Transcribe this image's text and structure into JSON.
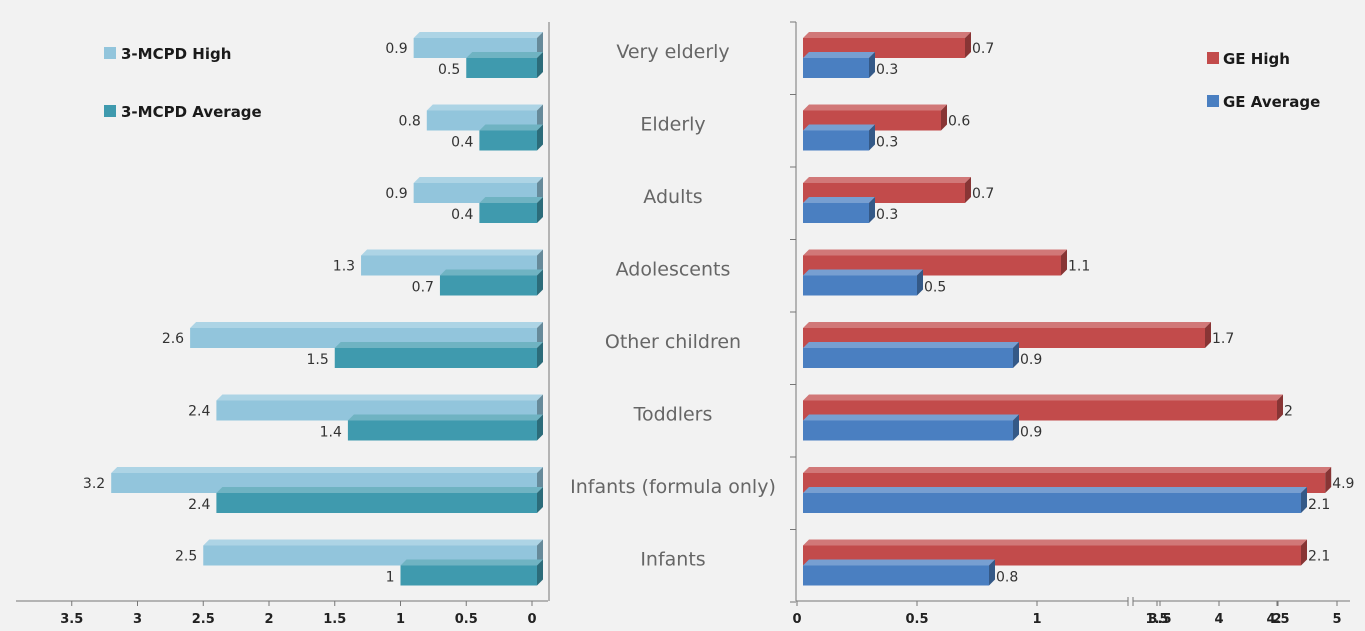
{
  "chart_data": {
    "type": "bar",
    "categories": [
      "Very elderly",
      "Elderly",
      "Adults",
      "Adolescents",
      "Other children",
      "Toddlers",
      "Infants (formula only)",
      "Infants"
    ],
    "left_panel": {
      "orientation": "horizontal-reversed",
      "xlim": [
        0,
        3.5
      ],
      "ticks": [
        "3.5",
        "3",
        "2.5",
        "2",
        "1.5",
        "1",
        "0.5",
        "0"
      ],
      "series": [
        {
          "name": "3-MCPD High",
          "color": "#92c5dc",
          "labels": [
            "0.9",
            "0.8",
            "0.9",
            "1.3",
            "2.6",
            "2.4",
            "3.2",
            "2.5"
          ],
          "values": [
            0.9,
            0.8,
            0.9,
            1.3,
            2.6,
            2.4,
            3.2,
            2.5
          ]
        },
        {
          "name": "3-MCPD Average",
          "color": "#3f9aae",
          "labels": [
            "0.5",
            "0.4",
            "0.4",
            "0.7",
            "1.5",
            "1.4",
            "2.4",
            "1"
          ],
          "values": [
            0.5,
            0.4,
            0.4,
            0.7,
            1.5,
            1.4,
            2.4,
            1.0
          ]
        }
      ],
      "legend_position": "top-left"
    },
    "right_panel": {
      "orientation": "horizontal",
      "axis_break": true,
      "ticks_lower": [
        "0",
        "0.5",
        "1",
        "1.5",
        "2",
        "2.5"
      ],
      "ticks_upper": [
        "3.5",
        "4",
        "4.5",
        "5"
      ],
      "series": [
        {
          "name": "GE High",
          "color": "#c24b4b",
          "labels": [
            "0.7",
            "0.6",
            "0.7",
            "1.1",
            "1.7",
            "2",
            "4.9",
            "2.1"
          ],
          "values": [
            0.7,
            0.6,
            0.7,
            1.1,
            1.7,
            2.0,
            4.9,
            2.1
          ]
        },
        {
          "name": "GE Average",
          "color": "#4a7fc1",
          "labels": [
            "0.3",
            "0.3",
            "0.3",
            "0.5",
            "0.9",
            "0.9",
            "2.1",
            "0.8"
          ],
          "values": [
            0.3,
            0.3,
            0.3,
            0.5,
            0.9,
            0.9,
            2.1,
            0.8
          ]
        }
      ],
      "legend_position": "top-right"
    }
  }
}
